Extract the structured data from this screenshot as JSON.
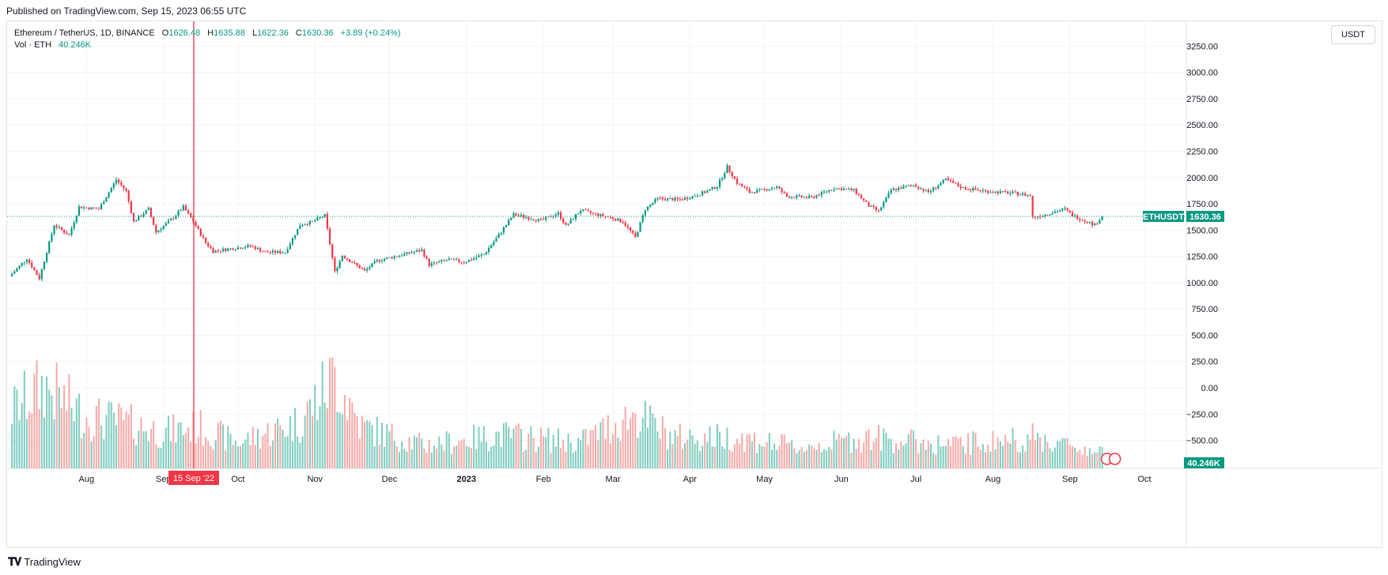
{
  "published": "Published on TradingView.com, Sep 15, 2023 06:55 UTC",
  "legend": {
    "symbol": "Ethereum / TetherUS, 1D, BINANCE",
    "open_label": "O",
    "open": "1626.48",
    "high_label": "H",
    "high": "1635.88",
    "low_label": "L",
    "low": "1622.36",
    "close_label": "C",
    "close": "1630.36",
    "change": "+3.89 (+0.24%)",
    "vol_label": "Vol · ETH",
    "vol_value": "40.246K"
  },
  "currency": "USDT",
  "footer_logo": "TradingView",
  "colors": {
    "up": "#089981",
    "down": "#f23645",
    "up_vol": "#7fcdbf",
    "down_vol": "#f7a9a7",
    "crosshair": "#f23645",
    "grid": "#f0f3fa"
  },
  "chart_data": {
    "type": "candlestick",
    "symbol": "ETHUSDT",
    "last_price": "1630.36",
    "last_price_label": "ETHUSDT",
    "volume_label": "40.246K",
    "crosshair_date": "15 Sep '22",
    "y_ticks": [
      "3250.00",
      "3000.00",
      "2750.00",
      "2500.00",
      "2250.00",
      "2000.00",
      "1750.00",
      "1500.00",
      "1250.00",
      "1000.00",
      "750.00",
      "500.00",
      "250.00",
      "0.00",
      "−250.00",
      "−500.00"
    ],
    "y_tick_values": [
      3250,
      3000,
      2750,
      2500,
      2250,
      2000,
      1750,
      1500,
      1250,
      1000,
      750,
      500,
      250,
      0,
      -250,
      -500
    ],
    "x_ticks": [
      {
        "label": "Aug",
        "x": "2022-08-01"
      },
      {
        "label": "Sep",
        "x": "2022-09-01"
      },
      {
        "label": "Oct",
        "x": "2022-10-01"
      },
      {
        "label": "Nov",
        "x": "2022-11-01"
      },
      {
        "label": "Dec",
        "x": "2022-12-01"
      },
      {
        "label": "2023",
        "x": "2023-01-01"
      },
      {
        "label": "Feb",
        "x": "2023-02-01"
      },
      {
        "label": "Mar",
        "x": "2023-03-01"
      },
      {
        "label": "Apr",
        "x": "2023-04-01"
      },
      {
        "label": "May",
        "x": "2023-05-01"
      },
      {
        "label": "Jun",
        "x": "2023-06-01"
      },
      {
        "label": "Jul",
        "x": "2023-07-01"
      },
      {
        "label": "Aug",
        "x": "2023-08-01"
      },
      {
        "label": "Sep",
        "x": "2023-09-01"
      },
      {
        "label": "Oct",
        "x": "2023-10-01"
      }
    ],
    "price_path": [
      [
        "2022-07-01",
        1060
      ],
      [
        "2022-07-08",
        1230
      ],
      [
        "2022-07-13",
        1040
      ],
      [
        "2022-07-19",
        1550
      ],
      [
        "2022-07-25",
        1450
      ],
      [
        "2022-07-29",
        1720
      ],
      [
        "2022-08-06",
        1700
      ],
      [
        "2022-08-13",
        1980
      ],
      [
        "2022-08-17",
        1870
      ],
      [
        "2022-08-20",
        1580
      ],
      [
        "2022-08-26",
        1700
      ],
      [
        "2022-08-29",
        1480
      ],
      [
        "2022-09-05",
        1620
      ],
      [
        "2022-09-09",
        1720
      ],
      [
        "2022-09-13",
        1580
      ],
      [
        "2022-09-18",
        1380
      ],
      [
        "2022-09-21",
        1300
      ],
      [
        "2022-09-30",
        1330
      ],
      [
        "2022-10-06",
        1350
      ],
      [
        "2022-10-12",
        1290
      ],
      [
        "2022-10-20",
        1290
      ],
      [
        "2022-10-26",
        1550
      ],
      [
        "2022-10-31",
        1580
      ],
      [
        "2022-11-05",
        1640
      ],
      [
        "2022-11-09",
        1100
      ],
      [
        "2022-11-12",
        1260
      ],
      [
        "2022-11-21",
        1110
      ],
      [
        "2022-11-26",
        1210
      ],
      [
        "2022-12-05",
        1260
      ],
      [
        "2022-12-14",
        1310
      ],
      [
        "2022-12-17",
        1170
      ],
      [
        "2022-12-25",
        1220
      ],
      [
        "2022-12-31",
        1195
      ],
      [
        "2023-01-08",
        1270
      ],
      [
        "2023-01-13",
        1420
      ],
      [
        "2023-01-20",
        1650
      ],
      [
        "2023-01-31",
        1590
      ],
      [
        "2023-02-07",
        1660
      ],
      [
        "2023-02-10",
        1540
      ],
      [
        "2023-02-16",
        1690
      ],
      [
        "2023-02-22",
        1650
      ],
      [
        "2023-02-28",
        1620
      ],
      [
        "2023-03-05",
        1580
      ],
      [
        "2023-03-10",
        1430
      ],
      [
        "2023-03-14",
        1700
      ],
      [
        "2023-03-19",
        1800
      ],
      [
        "2023-03-28",
        1790
      ],
      [
        "2023-04-02",
        1820
      ],
      [
        "2023-04-08",
        1870
      ],
      [
        "2023-04-12",
        1920
      ],
      [
        "2023-04-16",
        2100
      ],
      [
        "2023-04-20",
        1950
      ],
      [
        "2023-04-25",
        1860
      ],
      [
        "2023-04-30",
        1880
      ],
      [
        "2023-05-06",
        1910
      ],
      [
        "2023-05-10",
        1820
      ],
      [
        "2023-05-20",
        1810
      ],
      [
        "2023-05-29",
        1900
      ],
      [
        "2023-06-06",
        1880
      ],
      [
        "2023-06-12",
        1730
      ],
      [
        "2023-06-16",
        1680
      ],
      [
        "2023-06-21",
        1880
      ],
      [
        "2023-06-30",
        1930
      ],
      [
        "2023-07-06",
        1860
      ],
      [
        "2023-07-13",
        1980
      ],
      [
        "2023-07-20",
        1900
      ],
      [
        "2023-07-29",
        1870
      ],
      [
        "2023-08-10",
        1850
      ],
      [
        "2023-08-16",
        1830
      ],
      [
        "2023-08-17",
        1620
      ],
      [
        "2023-08-22",
        1650
      ],
      [
        "2023-08-30",
        1700
      ],
      [
        "2023-09-02",
        1640
      ],
      [
        "2023-09-11",
        1550
      ],
      [
        "2023-09-14",
        1630
      ]
    ],
    "volume_path": [
      [
        "2022-07-01",
        1100
      ],
      [
        "2022-07-15",
        1600
      ],
      [
        "2022-08-01",
        1000
      ],
      [
        "2022-08-15",
        900
      ],
      [
        "2022-09-01",
        700
      ],
      [
        "2022-09-15",
        800
      ],
      [
        "2022-10-01",
        500
      ],
      [
        "2022-10-26",
        900
      ],
      [
        "2022-11-09",
        1800
      ],
      [
        "2022-11-20",
        800
      ],
      [
        "2022-12-15",
        450
      ],
      [
        "2023-01-15",
        650
      ],
      [
        "2023-02-15",
        500
      ],
      [
        "2023-03-10",
        1050
      ],
      [
        "2023-03-25",
        600
      ],
      [
        "2023-04-20",
        600
      ],
      [
        "2023-05-15",
        400
      ],
      [
        "2023-06-12",
        600
      ],
      [
        "2023-07-15",
        450
      ],
      [
        "2023-08-17",
        600
      ],
      [
        "2023-09-14",
        300
      ]
    ]
  }
}
